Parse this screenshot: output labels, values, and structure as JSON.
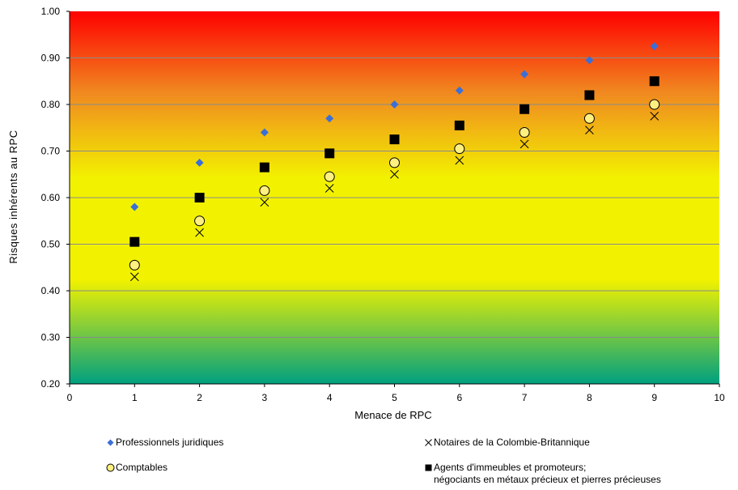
{
  "chart_data": {
    "type": "scatter",
    "xlabel": "Menace de RPC",
    "ylabel": "Risques inhérents au RPC",
    "xlim": [
      0,
      10
    ],
    "ylim": [
      0.2,
      1.0
    ],
    "x_ticks": [
      "0",
      "1",
      "2",
      "3",
      "4",
      "5",
      "6",
      "7",
      "8",
      "9",
      "10"
    ],
    "y_ticks": [
      "0.20",
      "0.30",
      "0.40",
      "0.50",
      "0.60",
      "0.70",
      "0.80",
      "0.90",
      "1.00"
    ],
    "grid": "horizontal",
    "background": "vertical gradient green to yellow to red",
    "gradient_colors": [
      "#00A080",
      "#F2F200",
      "#F08A20",
      "#FF0000"
    ],
    "series": [
      {
        "name": "Professionnels juridiques",
        "marker": "diamond",
        "color": "#3A6FD8",
        "x": [
          1,
          2,
          3,
          4,
          5,
          6,
          7,
          8,
          9
        ],
        "y": [
          0.58,
          0.675,
          0.74,
          0.77,
          0.8,
          0.83,
          0.865,
          0.895,
          0.925
        ]
      },
      {
        "name": "Notaires de la Colombie-Britannique",
        "marker": "x",
        "color": "#000000",
        "x": [
          1,
          2,
          3,
          4,
          5,
          6,
          7,
          8,
          9
        ],
        "y": [
          0.43,
          0.525,
          0.59,
          0.62,
          0.65,
          0.68,
          0.715,
          0.745,
          0.775
        ]
      },
      {
        "name": "Comptables",
        "marker": "circle",
        "color": "#FFF080",
        "x": [
          1,
          2,
          3,
          4,
          5,
          6,
          7,
          8,
          9
        ],
        "y": [
          0.455,
          0.55,
          0.615,
          0.645,
          0.675,
          0.705,
          0.74,
          0.77,
          0.8
        ]
      },
      {
        "name": "Agents d'immeubles et promoteurs;",
        "name_line2": "négociants en métaux précieux et pierres précieuses",
        "marker": "square",
        "color": "#000000",
        "x": [
          1,
          2,
          3,
          4,
          5,
          6,
          7,
          8,
          9
        ],
        "y": [
          0.505,
          0.6,
          0.665,
          0.695,
          0.725,
          0.755,
          0.79,
          0.82,
          0.85
        ]
      }
    ]
  }
}
